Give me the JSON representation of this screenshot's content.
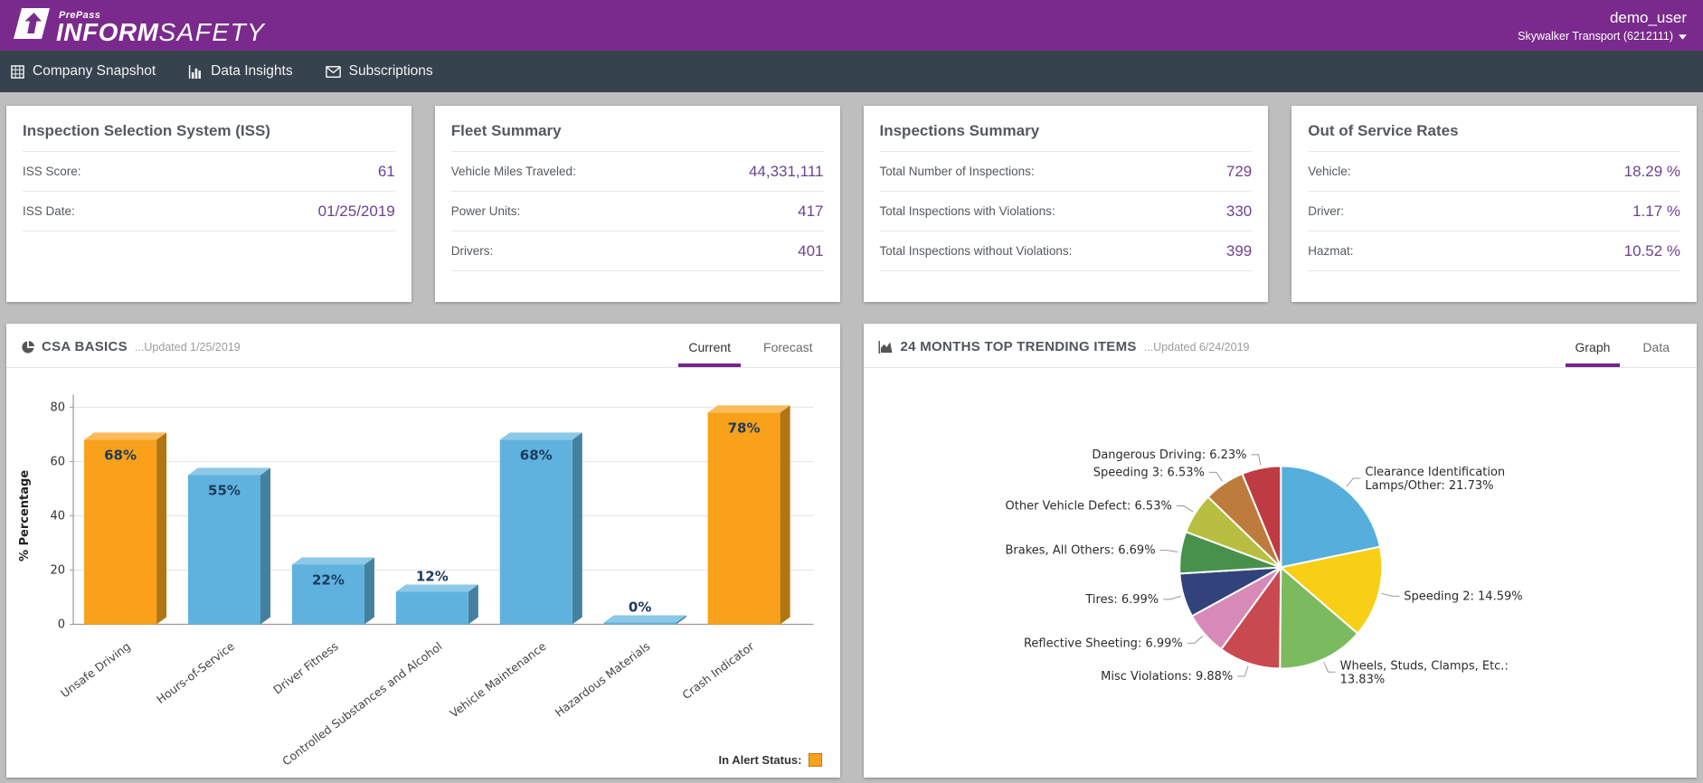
{
  "header": {
    "brand": {
      "prepass": "PrePass",
      "inform": "INFORM",
      "safety": "SAFETY"
    },
    "user": {
      "username": "demo_user",
      "account": "Skywalker Transport (6212111)"
    }
  },
  "nav": {
    "items": [
      {
        "label": "Company Snapshot",
        "icon": "grid"
      },
      {
        "label": "Data Insights",
        "icon": "bar-chart"
      },
      {
        "label": "Subscriptions",
        "icon": "envelope"
      }
    ]
  },
  "cards": [
    {
      "title": "Inspection Selection System (ISS)",
      "rows": [
        {
          "label": "ISS Score:",
          "value": "61"
        },
        {
          "label": "ISS Date:",
          "value": "01/25/2019"
        }
      ]
    },
    {
      "title": "Fleet Summary",
      "rows": [
        {
          "label": "Vehicle Miles Traveled:",
          "value": "44,331,111"
        },
        {
          "label": "Power Units:",
          "value": "417"
        },
        {
          "label": "Drivers:",
          "value": "401"
        }
      ]
    },
    {
      "title": "Inspections Summary",
      "rows": [
        {
          "label": "Total Number of Inspections:",
          "value": "729"
        },
        {
          "label": "Total Inspections with Violations:",
          "value": "330"
        },
        {
          "label": "Total Inspections without Violations:",
          "value": "399"
        }
      ]
    },
    {
      "title": "Out of Service Rates",
      "rows": [
        {
          "label": "Vehicle:",
          "value": "18.29 %"
        },
        {
          "label": "Driver:",
          "value": "1.17 %"
        },
        {
          "label": "Hazmat:",
          "value": "10.52 %"
        }
      ]
    }
  ],
  "csa_panel": {
    "title": "CSA BASICS",
    "updated": "...Updated 1/25/2019",
    "tabs": [
      "Current",
      "Forecast"
    ],
    "active_tab": "Current"
  },
  "trending_panel": {
    "title": "24 MONTHS TOP TRENDING ITEMS",
    "updated": "...Updated 6/24/2019",
    "tabs": [
      "Graph",
      "Data"
    ],
    "active_tab": "Graph"
  },
  "colors": {
    "brand_purple": "#7a2a8c",
    "nav_dark": "#36424e",
    "value_purple": "#6d4391",
    "bar_blue": "#5fb2de",
    "alert_orange": "#f9a11b"
  },
  "chart_data": [
    {
      "type": "bar",
      "title": "CSA BASICS",
      "categories": [
        "Unsafe Driving",
        "Hours-of-Service",
        "Driver Fitness",
        "Controlled Substances and Alcohol",
        "Vehicle Maintenance",
        "Hazardous Materials",
        "Crash Indicator"
      ],
      "values": [
        68,
        55,
        22,
        12,
        68,
        0,
        78
      ],
      "value_labels": [
        "68%",
        "55%",
        "22%",
        "12%",
        "68%",
        "0%",
        "78%"
      ],
      "in_alert": [
        true,
        false,
        false,
        false,
        false,
        false,
        true
      ],
      "xlabel": "",
      "ylabel": "% Percentage",
      "ylim": [
        0,
        80
      ],
      "yticks": [
        0,
        20,
        40,
        60,
        80
      ],
      "grid": true,
      "bar_color": "#5fb2de",
      "alert_color": "#f9a11b",
      "legend": {
        "label": "In Alert Status:",
        "color": "#f9a11b",
        "position": "bottom-right"
      }
    },
    {
      "type": "pie",
      "title": "24 MONTHS TOP TRENDING ITEMS",
      "start_angle_deg": 0,
      "direction": "clockwise",
      "slices": [
        {
          "name": "Clearance Identification Lamps/Other",
          "value": 21.73,
          "color": "#56aedc",
          "label_lines": [
            "Clearance Identification",
            "Lamps/Other: 21.73%"
          ]
        },
        {
          "name": "Speeding 2",
          "value": 14.59,
          "color": "#f8ce16",
          "label_lines": [
            "Speeding 2: 14.59%"
          ]
        },
        {
          "name": "Wheels, Studs, Clamps, Etc.",
          "value": 13.83,
          "color": "#7cba5f",
          "label_lines": [
            "Wheels, Studs, Clamps, Etc.:",
            "13.83%"
          ]
        },
        {
          "name": "Misc Violations",
          "value": 9.88,
          "color": "#c84a50",
          "label_lines": [
            "Misc Violations: 9.88%"
          ]
        },
        {
          "name": "Reflective Sheeting",
          "value": 6.99,
          "color": "#d78ab8",
          "label_lines": [
            "Reflective Sheeting: 6.99%"
          ]
        },
        {
          "name": "Tires",
          "value": 6.99,
          "color": "#32437b",
          "label_lines": [
            "Tires: 6.99%"
          ]
        },
        {
          "name": "Brakes, All Others",
          "value": 6.69,
          "color": "#48914b",
          "label_lines": [
            "Brakes, All Others: 6.69%"
          ]
        },
        {
          "name": "Other Vehicle Defect",
          "value": 6.53,
          "color": "#b8be3f",
          "label_lines": [
            "Other Vehicle Defect: 6.53%"
          ]
        },
        {
          "name": "Speeding 3",
          "value": 6.53,
          "color": "#bd7c3e",
          "label_lines": [
            "Speeding 3: 6.53%"
          ]
        },
        {
          "name": "Dangerous Driving",
          "value": 6.23,
          "color": "#bf3b43",
          "label_lines": [
            "Dangerous Driving: 6.23%"
          ]
        }
      ]
    }
  ]
}
